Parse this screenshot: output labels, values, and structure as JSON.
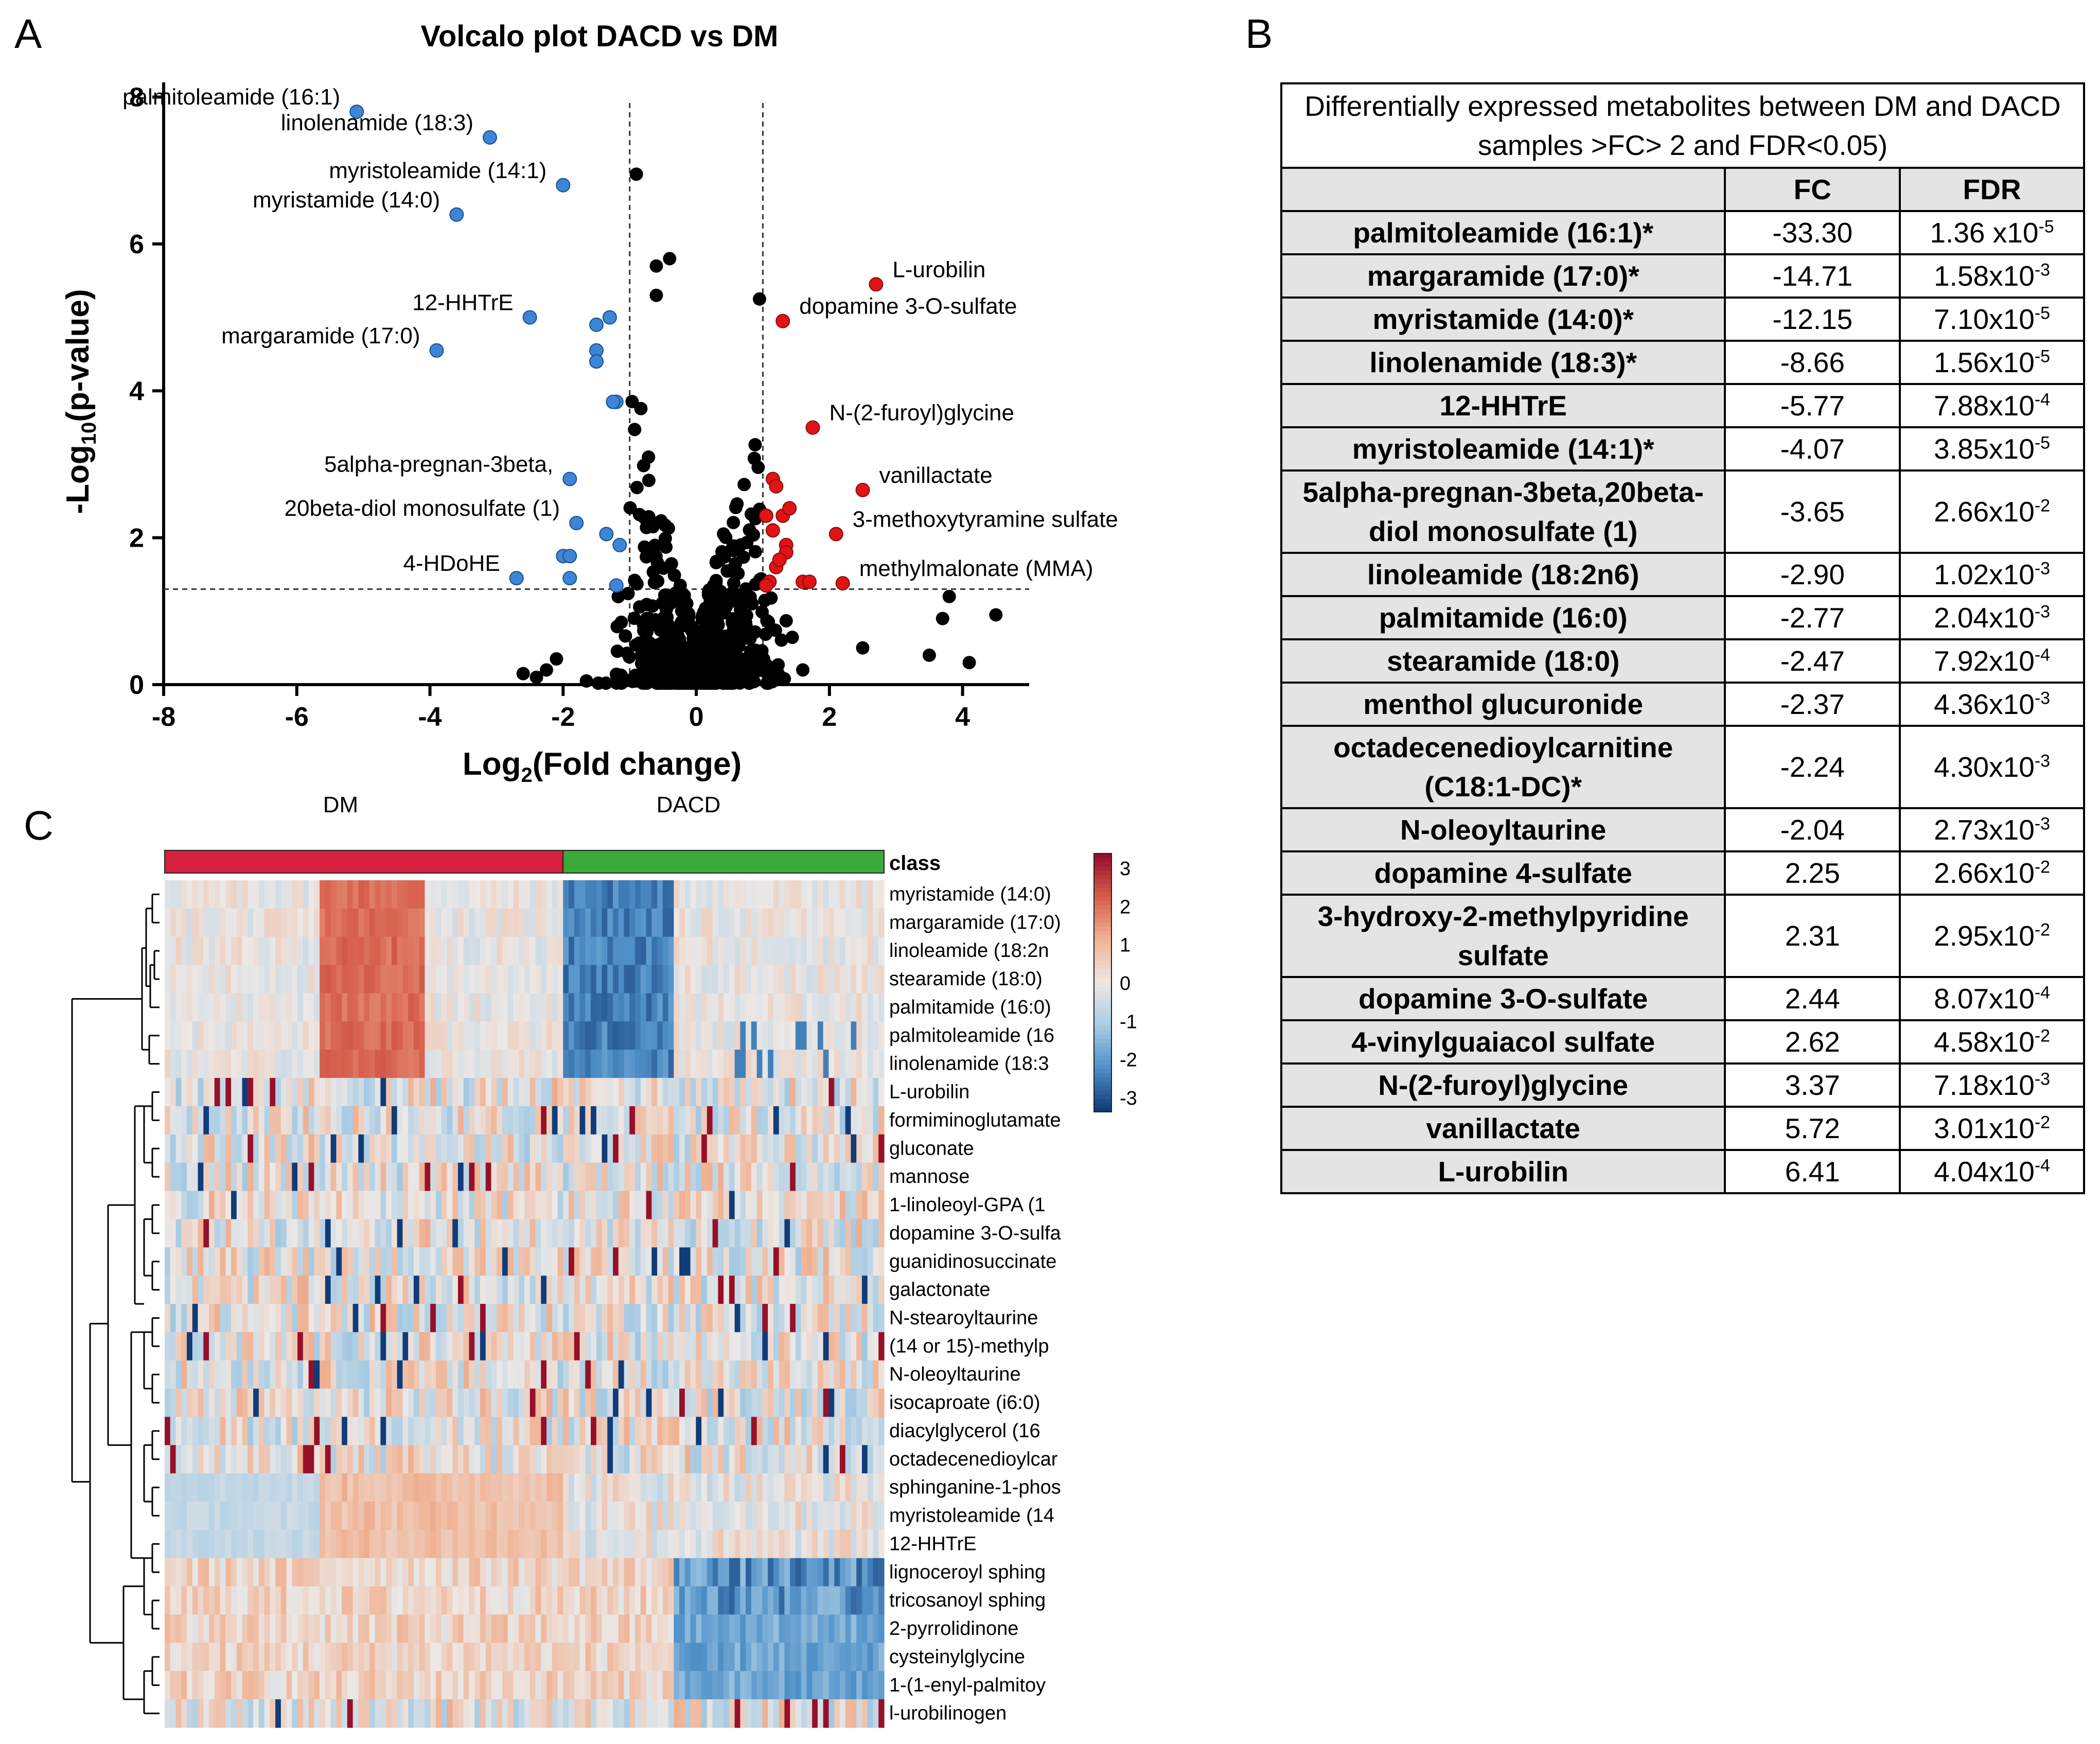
{
  "panels": {
    "a": "A",
    "b": "B",
    "c": "C"
  },
  "chart_data": [
    {
      "type": "scatter",
      "title": "Volcalo plot DACD vs DM",
      "xlabel_pre": "Log",
      "xlabel_sub": "2",
      "xlabel_post": "(Fold change)",
      "ylabel_pre": "-Log",
      "ylabel_sub": "10",
      "ylabel_post": "(p-value)",
      "xlim": [
        -8,
        5
      ],
      "ylim": [
        0,
        8.2
      ],
      "xticks": [
        -8,
        -6,
        -4,
        -2,
        0,
        2,
        4
      ],
      "yticks": [
        0,
        2,
        4,
        6,
        8
      ],
      "thresholds": {
        "x": [
          -1,
          1
        ],
        "y": 1.3
      },
      "colors": {
        "down": "#3d85d6",
        "up": "#e01414",
        "ns": "#000000"
      },
      "labeled_points": [
        {
          "label": "palmitoleamide (16:1)",
          "x": -5.1,
          "y": 7.8,
          "group": "down"
        },
        {
          "label": "linolenamide (18:3)",
          "x": -3.1,
          "y": 7.45,
          "group": "down"
        },
        {
          "label": "myristoleamide (14:1)",
          "x": -2.0,
          "y": 6.8,
          "group": "down"
        },
        {
          "label": "myristamide (14:0)",
          "x": -3.6,
          "y": 6.4,
          "group": "down"
        },
        {
          "label": "12-HHTrE",
          "x": -2.5,
          "y": 5.0,
          "group": "down"
        },
        {
          "label": "margaramide (17:0)",
          "x": -3.9,
          "y": 4.55,
          "group": "down"
        },
        {
          "label": "5alpha-pregnan-3beta,",
          "x": -1.9,
          "y": 2.8,
          "group": "down"
        },
        {
          "label": "20beta-diol monosulfate (1)",
          "x": -1.8,
          "y": 2.2,
          "group": "down"
        },
        {
          "label": "4-HDoHE",
          "x": -2.7,
          "y": 1.45,
          "group": "down"
        },
        {
          "label": "L-urobilin",
          "x": 2.7,
          "y": 5.45,
          "group": "up"
        },
        {
          "label": "dopamine 3-O-sulfate",
          "x": 1.3,
          "y": 4.95,
          "group": "up"
        },
        {
          "label": "N-(2-furoyl)glycine",
          "x": 1.75,
          "y": 3.5,
          "group": "up"
        },
        {
          "label": "vanillactate",
          "x": 2.5,
          "y": 2.65,
          "group": "up"
        },
        {
          "label": "3-methoxytyramine sulfate",
          "x": 2.1,
          "y": 2.05,
          "group": "up"
        },
        {
          "label": "methylmalonate (MMA)",
          "x": 2.2,
          "y": 1.38,
          "group": "up"
        }
      ],
      "other_down_points": [
        [
          -1.5,
          4.9
        ],
        [
          -1.3,
          5.0
        ],
        [
          -1.5,
          4.55
        ],
        [
          -1.5,
          4.4
        ],
        [
          -1.2,
          3.85
        ],
        [
          -1.25,
          3.85
        ],
        [
          -2.0,
          1.75
        ],
        [
          -1.9,
          1.75
        ],
        [
          -1.35,
          2.05
        ],
        [
          -1.15,
          1.9
        ],
        [
          -1.9,
          1.45
        ],
        [
          -1.2,
          1.35
        ]
      ],
      "other_up_points": [
        [
          1.15,
          2.8
        ],
        [
          1.2,
          2.7
        ],
        [
          1.05,
          2.3
        ],
        [
          1.3,
          2.3
        ],
        [
          1.4,
          2.4
        ],
        [
          1.15,
          2.1
        ],
        [
          1.35,
          1.9
        ],
        [
          1.35,
          1.8
        ],
        [
          1.2,
          1.6
        ],
        [
          1.25,
          1.7
        ],
        [
          1.1,
          1.4
        ],
        [
          1.6,
          1.4
        ],
        [
          1.7,
          1.4
        ],
        [
          1.05,
          1.35
        ]
      ],
      "outlier_points": [
        [
          -0.9,
          6.95
        ],
        [
          -0.4,
          5.8
        ],
        [
          -0.6,
          5.7
        ],
        [
          -0.6,
          5.3
        ],
        [
          0.95,
          5.25
        ],
        [
          3.8,
          1.2
        ],
        [
          4.5,
          0.95
        ],
        [
          3.7,
          0.9
        ],
        [
          3.5,
          0.4
        ],
        [
          4.1,
          0.3
        ],
        [
          2.5,
          0.5
        ],
        [
          -2.4,
          0.1
        ],
        [
          -2.25,
          0.2
        ],
        [
          -2.1,
          0.35
        ],
        [
          -1.65,
          0.05
        ],
        [
          -2.6,
          0.15
        ],
        [
          1.6,
          0.2
        ]
      ]
    },
    {
      "type": "heatmap",
      "group_labels": [
        "DM",
        "DACD"
      ],
      "class_label": "class",
      "class_colors": {
        "DM": "#d6203d",
        "DACD": "#3aaa3a"
      },
      "colorbar_ticks": [
        "3",
        "2",
        "1",
        "0",
        "-1",
        "-2",
        "-3"
      ],
      "rows": [
        "myristamide (14:0)",
        "margaramide (17:0)",
        "linoleamide (18:2n",
        "stearamide (18:0)",
        "palmitamide (16:0)",
        "palmitoleamide (16",
        "linolenamide (18:3",
        "L-urobilin",
        "formiminoglutamate",
        "gluconate",
        "mannose",
        "1-linoleoyl-GPA (1",
        "dopamine 3-O-sulfa",
        "guanidinosuccinate",
        "galactonate",
        "N-stearoyltaurine",
        "(14 or 15)-methylp",
        "N-oleoyltaurine",
        "isocaproate (i6:0)",
        "diacylglycerol (16",
        "octadecenedioylcar",
        "sphinganine-1-phos",
        "myristoleamide (14",
        "12-HHTrE",
        "lignoceroyl sphing",
        "tricosanoyl sphing",
        "2-pyrrolidinone",
        "cysteinylglycine",
        "1-(1-enyl-palmitoy",
        "l-urobilinogen"
      ]
    }
  ],
  "table": {
    "caption": "Differentially expressed metabolites between DM and DACD samples >FC> 2 and FDR<0.05)",
    "headers": [
      "",
      "FC",
      "FDR"
    ],
    "rows": [
      {
        "name": "palmitoleamide (16:1)*",
        "fc": "-33.30",
        "fdr_base": "1.36 x10",
        "fdr_exp": "-5"
      },
      {
        "name": "margaramide (17:0)*",
        "fc": "-14.71",
        "fdr_base": "1.58x10",
        "fdr_exp": "-3"
      },
      {
        "name": "myristamide (14:0)*",
        "fc": "-12.15",
        "fdr_base": "7.10x10",
        "fdr_exp": "-5"
      },
      {
        "name": "linolenamide (18:3)*",
        "fc": "-8.66",
        "fdr_base": "1.56x10",
        "fdr_exp": "-5"
      },
      {
        "name": "12-HHTrE",
        "fc": "-5.77",
        "fdr_base": "7.88x10",
        "fdr_exp": "-4"
      },
      {
        "name": "myristoleamide (14:1)*",
        "fc": "-4.07",
        "fdr_base": "3.85x10",
        "fdr_exp": "-5"
      },
      {
        "name": "5alpha-pregnan-3beta,20beta-diol monosulfate (1)",
        "fc": "-3.65",
        "fdr_base": "2.66x10",
        "fdr_exp": "-2"
      },
      {
        "name": "linoleamide (18:2n6)",
        "fc": "-2.90",
        "fdr_base": "1.02x10",
        "fdr_exp": "-3"
      },
      {
        "name": "palmitamide (16:0)",
        "fc": "-2.77",
        "fdr_base": "2.04x10",
        "fdr_exp": "-3"
      },
      {
        "name": "stearamide (18:0)",
        "fc": "-2.47",
        "fdr_base": "7.92x10",
        "fdr_exp": "-4"
      },
      {
        "name": "menthol glucuronide",
        "fc": "-2.37",
        "fdr_base": "4.36x10",
        "fdr_exp": "-3"
      },
      {
        "name": "octadecenedioylcarnitine (C18:1-DC)*",
        "fc": "-2.24",
        "fdr_base": "4.30x10",
        "fdr_exp": "-3"
      },
      {
        "name": "N-oleoyltaurine",
        "fc": "-2.04",
        "fdr_base": "2.73x10",
        "fdr_exp": "-3"
      },
      {
        "name": "dopamine 4-sulfate",
        "fc": "2.25",
        "fdr_base": "2.66x10",
        "fdr_exp": "-2"
      },
      {
        "name": "3-hydroxy-2-methylpyridine sulfate",
        "fc": "2.31",
        "fdr_base": "2.95x10",
        "fdr_exp": "-2"
      },
      {
        "name": "dopamine 3-O-sulfate",
        "fc": "2.44",
        "fdr_base": "8.07x10",
        "fdr_exp": "-4"
      },
      {
        "name": "4-vinylguaiacol sulfate",
        "fc": "2.62",
        "fdr_base": "4.58x10",
        "fdr_exp": "-2"
      },
      {
        "name": "N-(2-furoyl)glycine",
        "fc": "3.37",
        "fdr_base": "7.18x10",
        "fdr_exp": "-3"
      },
      {
        "name": "vanillactate",
        "fc": "5.72",
        "fdr_base": "3.01x10",
        "fdr_exp": "-2"
      },
      {
        "name": "L-urobilin",
        "fc": "6.41",
        "fdr_base": "4.04x10",
        "fdr_exp": "-4"
      }
    ]
  }
}
